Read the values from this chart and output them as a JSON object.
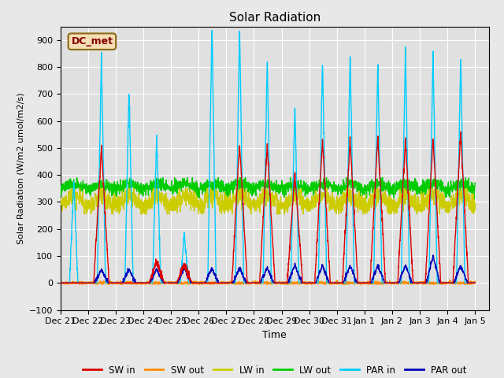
{
  "title": "Solar Radiation",
  "ylabel": "Solar Radiation (W/m2 umol/m2/s)",
  "xlabel": "Time",
  "ylim": [
    -100,
    950
  ],
  "yticks": [
    -100,
    0,
    100,
    200,
    300,
    400,
    500,
    600,
    700,
    800,
    900
  ],
  "x_tick_labels": [
    "Dec 21",
    "Dec 22",
    "Dec 23",
    "Dec 24",
    "Dec 25",
    "Dec 26",
    "Dec 27",
    "Dec 28",
    "Dec 29",
    "Dec 30",
    "Dec 31",
    "Jan 1",
    "Jan 2",
    "Jan 3",
    "Jan 4",
    "Jan 5"
  ],
  "station_label": "DC_met",
  "fig_facecolor": "#e8e8e8",
  "ax_facecolor": "#e0e0e0",
  "grid_color": "#ffffff",
  "sw_in_color": "#dd0000",
  "sw_out_color": "#ff8c00",
  "lw_in_color": "#cccc00",
  "lw_out_color": "#00cc00",
  "par_in_color": "#00ccff",
  "par_out_color": "#0000bb",
  "station_text_color": "#880000",
  "station_box_color": "#f5deb3",
  "station_box_edge": "#8b6914",
  "sw_in_peaks": [
    0,
    500,
    0,
    80,
    70,
    0,
    520,
    510,
    410,
    530,
    530,
    540,
    530,
    540,
    560
  ],
  "par_in_peaks": [
    380,
    845,
    720,
    540,
    180,
    960,
    960,
    830,
    655,
    835,
    855,
    825,
    870,
    850,
    845
  ],
  "par_out_peaks": [
    0,
    50,
    50,
    50,
    60,
    55,
    55,
    55,
    65,
    65,
    65,
    65,
    65,
    100,
    65
  ],
  "lw_in_base": 305,
  "lw_out_base": 345
}
